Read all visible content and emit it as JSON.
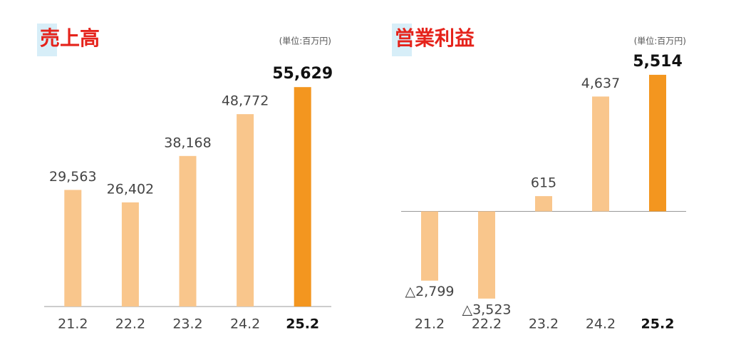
{
  "chart_data": [
    {
      "type": "bar",
      "title": "売上高",
      "unit": "(単位:百万円)",
      "categories": [
        "21.2",
        "22.2",
        "23.2",
        "24.2",
        "25.2"
      ],
      "values": [
        29563,
        26402,
        38168,
        48772,
        55629
      ],
      "value_labels": [
        "29,563",
        "26,402",
        "38,168",
        "48,772",
        "55,629"
      ],
      "colors": [
        "#f9c68c",
        "#f9c68c",
        "#f9c68c",
        "#f9c68c",
        "#f3961f"
      ],
      "ylim": [
        0,
        60000
      ]
    },
    {
      "type": "bar",
      "title": "営業利益",
      "unit": "(単位:百万円)",
      "categories": [
        "21.2",
        "22.2",
        "23.2",
        "24.2",
        "25.2"
      ],
      "values": [
        -2799,
        -3523,
        615,
        4637,
        5514
      ],
      "value_labels": [
        "△2,799",
        "△3,523",
        "615",
        "4,637",
        "5,514"
      ],
      "colors": [
        "#f9c68c",
        "#f9c68c",
        "#f9c68c",
        "#f9c68c",
        "#f3961f"
      ],
      "ylim": [
        -3700,
        5800
      ]
    }
  ]
}
